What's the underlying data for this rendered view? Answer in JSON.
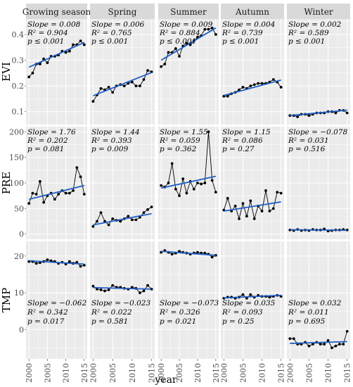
{
  "chart_data": {
    "type": "line",
    "x": [
      2000,
      2001,
      2002,
      2003,
      2004,
      2005,
      2006,
      2007,
      2008,
      2009,
      2010,
      2011,
      2012,
      2013,
      2014,
      2015
    ],
    "xlabel": "year",
    "x_ticks": [
      "2000",
      "2005",
      "2010",
      "2015"
    ],
    "columns": [
      "Growing season",
      "Spring",
      "Summer",
      "Autumn",
      "Winter"
    ],
    "rows": [
      {
        "label": "EVI",
        "ylim": [
          0.05,
          0.46
        ],
        "ticks": [
          0.1,
          0.2,
          0.3,
          0.4
        ],
        "tick_labels": [
          "0.1",
          "0.2",
          "0.3",
          "0.4"
        ],
        "series": [
          {
            "name": "Growing season",
            "values": [
              0.235,
              0.25,
              0.285,
              0.285,
              0.305,
              0.29,
              0.315,
              0.315,
              0.32,
              0.335,
              0.33,
              0.335,
              0.36,
              0.36,
              0.375,
              0.36
            ],
            "trend": [
              0.273,
              0.369
            ],
            "stats": [
              "Slope = 0.008",
              "R² = 0.904",
              "p ≤ 0.001"
            ]
          },
          {
            "name": "Spring",
            "values": [
              0.14,
              0.165,
              0.19,
              0.185,
              0.195,
              0.175,
              0.2,
              0.205,
              0.2,
              0.21,
              0.215,
              0.2,
              0.2,
              0.225,
              0.26,
              0.255
            ],
            "trend": [
              0.162,
              0.252
            ],
            "stats": [
              "Slope = 0.006",
              "R² = 0.765",
              "p ≤ 0.001"
            ]
          },
          {
            "name": "Summer",
            "values": [
              0.275,
              0.285,
              0.33,
              0.33,
              0.345,
              0.315,
              0.355,
              0.365,
              0.36,
              0.375,
              0.39,
              0.395,
              0.42,
              0.42,
              0.425,
              0.4
            ],
            "trend": [
              0.3,
              0.425
            ],
            "stats": [
              "Slope = 0.009",
              "R² = 0.884",
              "p ≤ 0.001"
            ]
          },
          {
            "name": "Autumn",
            "values": [
              0.16,
              0.16,
              0.17,
              0.175,
              0.185,
              0.195,
              0.19,
              0.2,
              0.205,
              0.21,
              0.21,
              0.21,
              0.215,
              0.225,
              0.215,
              0.195
            ],
            "trend": [
              0.163,
              0.223
            ],
            "stats": [
              "Slope = 0.004",
              "R² = 0.739",
              "p ≤ 0.001"
            ]
          },
          {
            "name": "Winter",
            "values": [
              0.085,
              0.085,
              0.08,
              0.09,
              0.09,
              0.085,
              0.09,
              0.095,
              0.095,
              0.095,
              0.1,
              0.1,
              0.095,
              0.105,
              0.105,
              0.095
            ],
            "trend": [
              0.085,
              0.106
            ],
            "stats": [
              "Slope = 0.002",
              "R² = 0.589",
              "p ≤ 0.001"
            ]
          }
        ]
      },
      {
        "label": "PRE",
        "ylim": [
          -10,
          210
        ],
        "ticks": [
          0,
          50,
          100,
          150,
          200
        ],
        "tick_labels": [
          "0",
          "50",
          "100",
          "150",
          "200"
        ],
        "series": [
          {
            "name": "Growing season",
            "values": [
              60,
              80,
              78,
              103,
              62,
              75,
              80,
              68,
              78,
              85,
              80,
              80,
              85,
              130,
              112,
              78
            ],
            "trend": [
              68,
              95
            ],
            "stats": [
              "Slope = 1.76",
              "R² = 0.202",
              "p = 0.081"
            ]
          },
          {
            "name": "Spring",
            "values": [
              15,
              25,
              42,
              25,
              18,
              30,
              27,
              25,
              30,
              35,
              28,
              28,
              33,
              42,
              48,
              53
            ],
            "trend": [
              18,
              40
            ],
            "stats": [
              "Slope = 1.44",
              "R² = 0.393",
              "p = 0.009"
            ]
          },
          {
            "name": "Summer",
            "values": [
              95,
              92,
              100,
              138,
              88,
              75,
              108,
              80,
              103,
              88,
              100,
              98,
              100,
              200,
              105,
              82
            ],
            "trend": [
              90,
              113
            ],
            "stats": [
              "Slope = 1.55",
              "R² = 0.059",
              "p = 0.362"
            ]
          },
          {
            "name": "Autumn",
            "values": [
              47,
              70,
              45,
              55,
              30,
              60,
              35,
              65,
              30,
              55,
              45,
              85,
              45,
              50,
              82,
              80
            ],
            "trend": [
              45,
              63
            ],
            "stats": [
              "Slope = 1.15",
              "R² = 0.086",
              "p = 0.27"
            ]
          },
          {
            "name": "Winter",
            "values": [
              8,
              7,
              9,
              7,
              8,
              7,
              9,
              8,
              8,
              10,
              6,
              7,
              8,
              8,
              9,
              8
            ],
            "trend": [
              8.5,
              7.5
            ],
            "stats": [
              "Slope = −0.078",
              "R² = 0.031",
              "p = 0.516"
            ]
          }
        ]
      },
      {
        "label": "TMP",
        "ylim": [
          -8,
          24
        ],
        "ticks": [
          0,
          10,
          20
        ],
        "tick_labels": [
          "0",
          "10",
          "20"
        ],
        "series": [
          {
            "name": "Growing season",
            "values": [
              18.5,
              18.5,
              18.0,
              18.2,
              18.5,
              19.0,
              18.7,
              18.5,
              18.0,
              18.3,
              17.8,
              18.5,
              18.0,
              18.3,
              17.2,
              17.5
            ],
            "trend": [
              18.7,
              17.8
            ],
            "stats": [
              "Slope = −0.062",
              "R² = 0.342",
              "p = 0.017"
            ]
          },
          {
            "name": "Spring",
            "values": [
              11.8,
              11.0,
              10.8,
              10.5,
              10.8,
              12.0,
              11.5,
              11.5,
              11.2,
              11.0,
              11.5,
              11.2,
              10.0,
              10.5,
              12.0,
              11.0
            ],
            "trend": [
              11.4,
              11.0
            ],
            "stats": [
              "Slope = −0.023",
              "R² = 0.022",
              "p = 0.581"
            ]
          },
          {
            "name": "Summer",
            "values": [
              21.0,
              21.5,
              21.0,
              20.5,
              20.8,
              21.3,
              21.0,
              20.8,
              20.5,
              20.8,
              21.0,
              20.8,
              20.8,
              20.5,
              19.7,
              20.2
            ],
            "trend": [
              21.3,
              20.2
            ],
            "stats": [
              "Slope = −0.073",
              "R² = 0.326",
              "p = 0.021"
            ]
          },
          {
            "name": "Autumn",
            "values": [
              8.5,
              8.8,
              8.8,
              8.5,
              8.8,
              9.5,
              8.5,
              9.5,
              8.8,
              9.3,
              9.0,
              9.0,
              8.8,
              9.0,
              9.3,
              9.0
            ],
            "trend": [
              8.6,
              9.3
            ],
            "stats": [
              "Slope = 0.035",
              "R² = 0.093",
              "p = 0.25"
            ]
          },
          {
            "name": "Winter",
            "values": [
              -2.5,
              -2.5,
              -4.0,
              -4.0,
              -3.5,
              -4.5,
              -4.0,
              -3.5,
              -4.0,
              -4.0,
              -3.0,
              -5.0,
              -4.5,
              -4.0,
              -4.0,
              -0.5
            ],
            "trend": [
              -3.8,
              -3.3
            ],
            "stats": [
              "Slope = 0.032",
              "R² = 0.011",
              "p = 0.695"
            ]
          }
        ]
      }
    ],
    "colors": {
      "panel_bg": "#ebebeb",
      "strip_bg": "#d9d9d9",
      "grid": "#ffffff",
      "points": "#000000",
      "trend": "#1f5fc6"
    }
  }
}
